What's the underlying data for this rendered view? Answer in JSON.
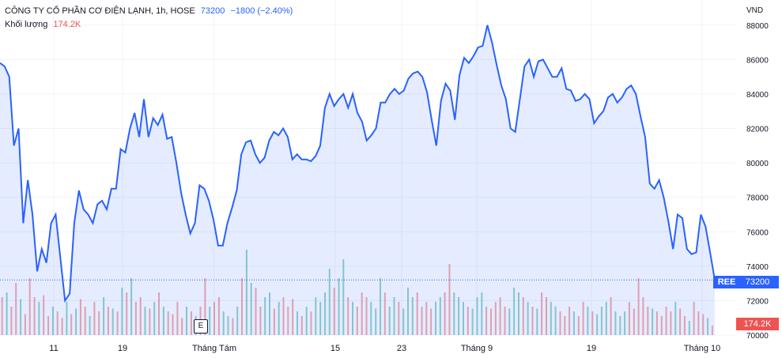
{
  "legend": {
    "title": "CÔNG TY CỔ PHẦN CƠ ĐIỆN LẠNH, 1h, HOSE",
    "price": "73200",
    "change": "−1800 (−2.40%)",
    "volume_label": "Khối lượng",
    "volume_value": "174.2K"
  },
  "axis": {
    "currency": "VND",
    "y_ticks": [
      "88000",
      "86000",
      "84000",
      "82000",
      "80000",
      "78000",
      "76000",
      "74000",
      "72000",
      "70000"
    ],
    "x_ticks": [
      "11",
      "19",
      "Tháng Tám",
      "15",
      "23",
      "Tháng 9",
      "19",
      "Tháng 10"
    ]
  },
  "price_tag": {
    "symbol": "REE",
    "price": "73200",
    "volume": "174.2K"
  },
  "event_badge": "E",
  "colors": {
    "line": "#2962ff",
    "area": "#2962ff",
    "vol_up": "#26a69a",
    "vol_down": "#ef5350"
  },
  "chart_data": {
    "type": "area",
    "ylim": [
      70000,
      89000
    ],
    "ylabel": "VND",
    "close": [
      85800,
      85600,
      85000,
      81000,
      82000,
      76500,
      79000,
      77000,
      73700,
      75000,
      74200,
      76500,
      77000,
      74500,
      72000,
      72400,
      76500,
      78400,
      77300,
      77000,
      76500,
      77600,
      77800,
      77300,
      78500,
      78500,
      80800,
      80600,
      82000,
      82900,
      81500,
      83700,
      81500,
      82600,
      82200,
      82800,
      81400,
      81500,
      80000,
      78300,
      77000,
      75900,
      76500,
      78700,
      78500,
      77800,
      76700,
      75200,
      75200,
      76500,
      77400,
      78400,
      80500,
      81200,
      81300,
      80500,
      80000,
      80300,
      81300,
      81800,
      81600,
      82000,
      81500,
      80200,
      80500,
      80200,
      80200,
      80100,
      80400,
      81000,
      83200,
      84000,
      83300,
      83700,
      84000,
      83200,
      84000,
      82900,
      82400,
      81300,
      81600,
      82000,
      83500,
      83500,
      84000,
      84300,
      84000,
      84200,
      84900,
      85200,
      85300,
      85000,
      84100,
      82500,
      81000,
      83600,
      84600,
      84200,
      82500,
      85100,
      86100,
      85800,
      86200,
      86700,
      86800,
      88000,
      87000,
      85700,
      84500,
      83700,
      82000,
      81800,
      83700,
      85600,
      86000,
      85000,
      85900,
      86000,
      85500,
      85000,
      85000,
      85500,
      84300,
      84200,
      83600,
      83700,
      84000,
      83700,
      82300,
      82700,
      83000,
      83800,
      84000,
      83500,
      83800,
      84300,
      84500,
      84000,
      82700,
      81500,
      78800,
      78500,
      79000,
      78000,
      76600,
      75000,
      77000,
      76800,
      75000,
      74700,
      74800,
      77000,
      76300,
      74800,
      73200
    ]
  },
  "volume_data": {
    "values": [
      40,
      45,
      30,
      55,
      38,
      22,
      60,
      40,
      35,
      42,
      20,
      30,
      25,
      18,
      35,
      22,
      28,
      38,
      30,
      20,
      35,
      25,
      40,
      30,
      28,
      25,
      50,
      45,
      60,
      35,
      40,
      30,
      28,
      35,
      45,
      30,
      25,
      22,
      35,
      18,
      30,
      25,
      20,
      30,
      60,
      30,
      35,
      40,
      25,
      20,
      18,
      30,
      60,
      90,
      55,
      50,
      30,
      40,
      45,
      28,
      35,
      40,
      30,
      38,
      25,
      20,
      30,
      25,
      40,
      35,
      45,
      70,
      50,
      60,
      80,
      40,
      35,
      30,
      45,
      40,
      35,
      28,
      60,
      45,
      30,
      40,
      35,
      28,
      50,
      40,
      45,
      30,
      35,
      28,
      35,
      40,
      45,
      75,
      45,
      40,
      35,
      30,
      28,
      40,
      45,
      30,
      28,
      35,
      40,
      30,
      28,
      50,
      45,
      40,
      35,
      30,
      28,
      45,
      40,
      35,
      30,
      25,
      20,
      30,
      25,
      20,
      35,
      30,
      25,
      22,
      30,
      35,
      40,
      25,
      20,
      25,
      35,
      28,
      60,
      40,
      30,
      28,
      25,
      20,
      30,
      25,
      35,
      28,
      20,
      15,
      35,
      25,
      22,
      18,
      10
    ],
    "down": [
      1,
      0,
      1,
      1,
      0,
      1,
      1,
      1,
      0,
      1,
      1,
      0,
      1,
      1,
      0,
      1,
      0,
      1,
      1,
      0,
      1,
      1,
      0,
      1,
      0,
      1,
      0,
      1,
      0,
      1,
      1,
      0,
      1,
      0,
      1,
      0,
      1,
      1,
      1,
      1,
      0,
      1,
      0,
      1,
      1,
      0,
      1,
      1,
      0,
      0,
      1,
      0,
      1,
      0,
      0,
      1,
      1,
      0,
      0,
      1,
      0,
      1,
      1,
      1,
      0,
      1,
      0,
      1,
      0,
      0,
      0,
      0,
      1,
      0,
      0,
      1,
      0,
      1,
      1,
      1,
      0,
      0,
      0,
      1,
      0,
      0,
      1,
      0,
      0,
      0,
      1,
      1,
      1,
      1,
      0,
      0,
      1,
      1,
      0,
      0,
      0,
      1,
      0,
      0,
      0,
      1,
      1,
      1,
      1,
      1,
      0,
      0,
      0,
      1,
      0,
      1,
      0,
      1,
      1,
      0,
      0,
      1,
      1,
      1,
      0,
      1,
      1,
      0,
      1,
      0,
      0,
      0,
      1,
      0,
      0,
      0,
      1,
      1,
      1,
      1,
      1,
      0,
      1,
      1,
      1,
      1,
      0,
      1,
      1,
      0,
      1,
      1,
      1,
      0,
      1
    ]
  }
}
